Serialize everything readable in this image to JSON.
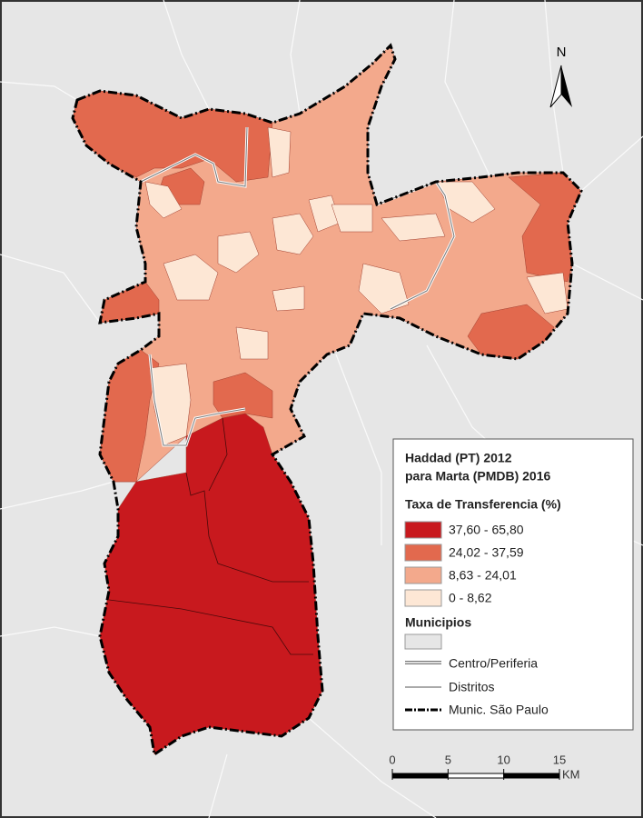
{
  "north_arrow": {
    "label": "N"
  },
  "legend": {
    "title": [
      "Haddad (PT) 2012",
      "para Marta (PMDB) 2016"
    ],
    "subtitle": "Taxa de Transferencia (%)",
    "classes": [
      {
        "label": "37,60 - 65,80",
        "color": "#c8191e"
      },
      {
        "label": "24,02 - 37,59",
        "color": "#e2694e"
      },
      {
        "label": "8,63 - 24,01",
        "color": "#f3a98c"
      },
      {
        "label": "0 - 8,62",
        "color": "#fde7d5"
      }
    ],
    "layers_title": "Municipios",
    "lines": [
      "Centro/Periferia",
      "Distritos",
      "Munic. São Paulo"
    ]
  },
  "scale_bar": {
    "ticks": [
      0,
      5,
      10,
      15
    ],
    "unit": "KM"
  }
}
